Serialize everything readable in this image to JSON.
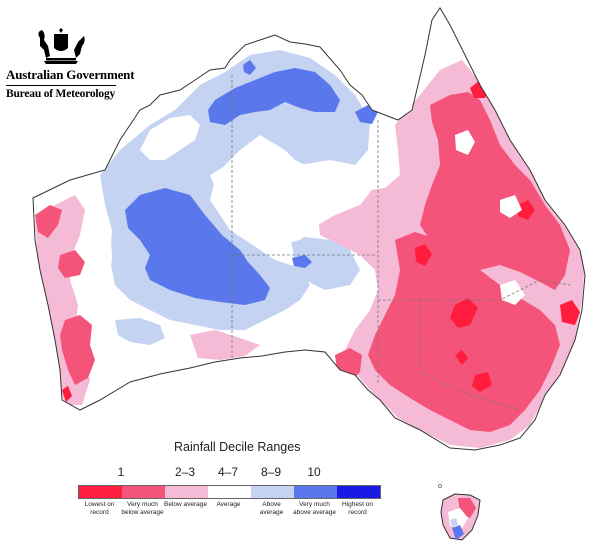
{
  "logo": {
    "government": "Australian Government",
    "bureau": "Bureau of Meteorology"
  },
  "legend": {
    "title": "Rainfall Decile Ranges",
    "headings": [
      "1",
      "2–3",
      "4–7",
      "8–9",
      "10"
    ],
    "swatches": [
      {
        "label": "Lowest on record",
        "color": "#ff1c3c"
      },
      {
        "label": "Very much below average",
        "color": "#f4547a"
      },
      {
        "label": "Below average",
        "color": "#f5bbd6"
      },
      {
        "label": "Average",
        "color": "#ffffff"
      },
      {
        "label": "Above average",
        "color": "#c4d3f1"
      },
      {
        "label": "Very much above average",
        "color": "#5a78ec"
      },
      {
        "label": "Highest on record",
        "color": "#1a1ae6"
      }
    ]
  },
  "map_colors": {
    "land": "#ffffff",
    "outline": "#333333",
    "state_border": "#777777"
  }
}
